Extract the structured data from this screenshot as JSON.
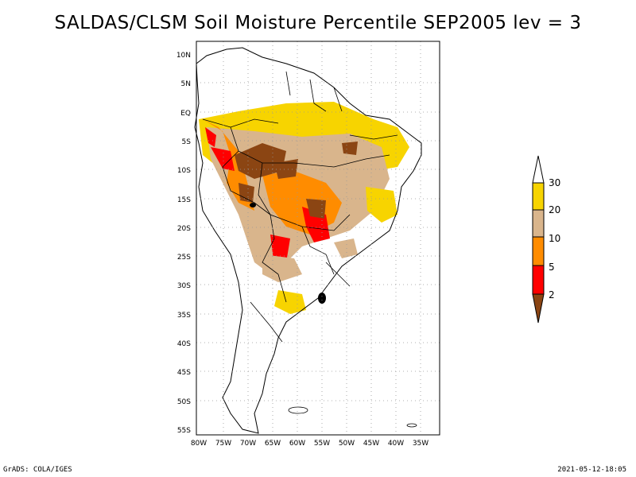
{
  "title": "SALDAS/CLSM Soil Moisture Percentile SEP2005 lev = 3",
  "footer": {
    "left": "GrADS: COLA/IGES",
    "right": "2021-05-12-18:05"
  },
  "map": {
    "lat_labels": [
      "10N",
      "5N",
      "EQ",
      "5S",
      "10S",
      "15S",
      "20S",
      "25S",
      "30S",
      "35S",
      "40S",
      "45S",
      "50S",
      "55S"
    ],
    "lon_labels": [
      "80W",
      "75W",
      "70W",
      "65W",
      "60W",
      "55W",
      "50W",
      "45W",
      "40W",
      "35W"
    ]
  },
  "legend": {
    "labels": [
      "30",
      "20",
      "10",
      "5",
      "2"
    ],
    "colors": {
      "c30": "#f7d400",
      "c20": "#d9b58c",
      "c10": "#ff8c00",
      "c5": "#ff0000",
      "c2": "#8b4513",
      "cover": "#ffffff"
    }
  }
}
